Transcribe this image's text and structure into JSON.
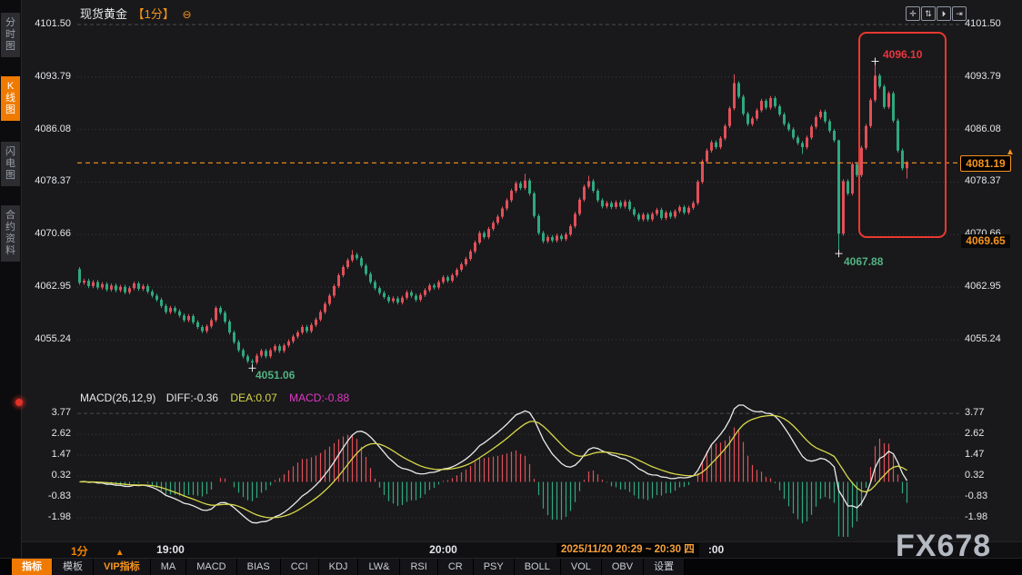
{
  "header": {
    "title": "现货黄金",
    "interval": "【1分】",
    "collapse_icon": "⊖"
  },
  "window_icons": [
    {
      "name": "move-icon",
      "glyph": "✛"
    },
    {
      "name": "scale-axis-icon",
      "glyph": "⇅"
    },
    {
      "name": "auto-scroll-icon",
      "glyph": "⏵"
    },
    {
      "name": "pan-right-icon",
      "glyph": "⇥"
    }
  ],
  "sidebar": {
    "items": [
      {
        "label": "分时图",
        "active": false
      },
      {
        "label": "K线图",
        "active": true
      },
      {
        "label": "闪电图",
        "active": false
      },
      {
        "label": "合约资料",
        "active": false
      }
    ]
  },
  "indicator_readout": {
    "name": "MACD(26,12,9)",
    "diff": "DIFF:-0.36",
    "dea": "DEA:0.07",
    "macd": "MACD:-0.88"
  },
  "price_axis": {
    "current": "4081.19",
    "prev_close": "4069.65"
  },
  "annotations": {
    "high": "4096.10",
    "low": "4067.88",
    "session_low": "4051.06"
  },
  "time_axis": {
    "interval": "1分",
    "arrow": "▲",
    "tooltip": "2025/11/20 20:29 ~ 20:30 四",
    "labels": [
      {
        "index": 20,
        "text": "19:00"
      },
      {
        "index": 80,
        "text": "20:00"
      },
      {
        "index": 140,
        "text": ":00"
      }
    ]
  },
  "toolbar": {
    "items": [
      {
        "label": "指标",
        "style": "active"
      },
      {
        "label": "模板",
        "style": "normal"
      },
      {
        "label": "VIP指标",
        "style": "vip"
      },
      {
        "label": "MA",
        "style": "normal"
      },
      {
        "label": "MACD",
        "style": "normal"
      },
      {
        "label": "BIAS",
        "style": "normal"
      },
      {
        "label": "CCI",
        "style": "normal"
      },
      {
        "label": "KDJ",
        "style": "normal"
      },
      {
        "label": "LW&",
        "style": "normal"
      },
      {
        "label": "RSI",
        "style": "normal"
      },
      {
        "label": "CR",
        "style": "normal"
      },
      {
        "label": "PSY",
        "style": "normal"
      },
      {
        "label": "BOLL",
        "style": "normal"
      },
      {
        "label": "VOL",
        "style": "normal"
      },
      {
        "label": "OBV",
        "style": "normal"
      },
      {
        "label": "设置",
        "style": "normal"
      }
    ]
  },
  "watermark": "FX678",
  "colors": {
    "up": "#e0505a",
    "down": "#2fa87e",
    "accent": "#f7941d",
    "grid": "#3b3b42",
    "grid_major": "#4a4a52",
    "diff_line": "#eaeaea",
    "dea_line": "#d8d84a",
    "annotation_red": "#e8363f",
    "annotation_green": "#52b283",
    "highlight_box": "#e8392f",
    "marker": "#e8e8e8"
  },
  "chart_data": {
    "type": "candlestick",
    "title": "现货黄金 1分",
    "interval_minutes": 1,
    "price_ticks": [
      4101.5,
      4093.79,
      4086.08,
      4078.37,
      4070.66,
      4062.95,
      4055.24
    ],
    "ylim": [
      4048.6,
      4103.2
    ],
    "current_price": 4081.19,
    "prev_close": 4069.65,
    "x_hour_labels": [
      "19:00",
      "20:00",
      "21:00"
    ],
    "first_open": 4065.6,
    "default_wick": 0.3,
    "closes": [
      4063.6,
      4063.9,
      4063.1,
      4063.7,
      4062.9,
      4063.4,
      4062.6,
      4063.2,
      4062.5,
      4063.0,
      4062.2,
      4062.8,
      4063.5,
      4062.7,
      4063.1,
      4062.3,
      4061.7,
      4061.1,
      4060.2,
      4059.3,
      4059.9,
      4059.4,
      4058.8,
      4058.1,
      4058.7,
      4057.8,
      4057.1,
      4056.5,
      4057.2,
      4058.1,
      4059.9,
      4059.2,
      4057.9,
      4056.3,
      4054.9,
      4053.7,
      4052.8,
      4052.1,
      4051.9,
      4052.9,
      4053.6,
      4052.8,
      4053.7,
      4054.3,
      4053.6,
      4054.4,
      4055.0,
      4055.7,
      4056.3,
      4057.1,
      4056.5,
      4057.4,
      4058.2,
      4059.3,
      4060.5,
      4061.7,
      4063.1,
      4064.7,
      4065.9,
      4066.9,
      4067.7,
      4067.2,
      4066.1,
      4064.9,
      4063.7,
      4062.8,
      4062.1,
      4061.5,
      4060.9,
      4061.3,
      4060.7,
      4061.4,
      4062.2,
      4061.7,
      4061.1,
      4061.8,
      4062.5,
      4063.2,
      4062.9,
      4063.7,
      4064.4,
      4063.9,
      4064.7,
      4065.5,
      4066.3,
      4067.1,
      4068.2,
      4069.5,
      4070.9,
      4070.3,
      4071.5,
      4072.4,
      4073.3,
      4074.5,
      4075.7,
      4077.1,
      4078.2,
      4077.5,
      4078.6,
      4076.7,
      4073.4,
      4070.9,
      4069.7,
      4070.3,
      4069.8,
      4070.5,
      4070.0,
      4070.7,
      4071.9,
      4073.7,
      4075.8,
      4077.7,
      4078.5,
      4077.1,
      4075.7,
      4074.8,
      4075.3,
      4074.7,
      4075.4,
      4074.8,
      4075.5,
      4074.4,
      4073.6,
      4072.9,
      4073.6,
      4072.9,
      4073.7,
      4074.3,
      4073.1,
      4073.9,
      4073.3,
      4074.1,
      4074.7,
      4073.9,
      4074.6,
      4075.3,
      4078.4,
      4081.4,
      4083.0,
      4084.2,
      4083.5,
      4084.8,
      4086.6,
      4089.2,
      4092.9,
      4090.9,
      4088.4,
      4086.9,
      4087.7,
      4088.9,
      4090.3,
      4089.3,
      4090.7,
      4089.5,
      4088.3,
      4086.9,
      4086.1,
      4084.9,
      4084.1,
      4083.5,
      4084.9,
      4086.5,
      4087.9,
      4088.7,
      4087.3,
      4085.9,
      4084.5,
      4070.8,
      4078.5,
      4076.7,
      4081.0,
      4079.4,
      4083.4,
      4086.6,
      4090.4,
      4094.0,
      4092.4,
      4089.4,
      4091.4,
      4087.4,
      4083.0,
      4080.4,
      4081.19
    ],
    "wick_overrides": {
      "38": {
        "low": 4051.06
      },
      "60": {
        "high": 4068.4
      },
      "98": {
        "high": 4079.6
      },
      "112": {
        "high": 4079.3
      },
      "144": {
        "high": 4094.2
      },
      "159": {
        "low": 4082.5
      },
      "167": {
        "low": 4067.88,
        "high": 4084.6
      },
      "175": {
        "high": 4096.1
      },
      "182": {
        "low": 4078.9
      }
    },
    "markers": {
      "high": {
        "index": 175,
        "price": 4096.1,
        "label": "4096.10"
      },
      "low": {
        "index": 167,
        "price": 4067.88,
        "label": "4067.88"
      },
      "session_low": {
        "index": 38,
        "price": 4051.06,
        "label": "4051.06"
      }
    },
    "highlight_box": {
      "start_index": 171.5,
      "end_index": 190.5,
      "price_min": 4070.3,
      "price_max": 4100.3
    },
    "macd": {
      "params": [
        26,
        12,
        9
      ],
      "ticks": [
        3.77,
        2.62,
        1.47,
        0.32,
        -0.83,
        -1.98
      ],
      "last_diff": -0.36,
      "last_dea": 0.07,
      "last_hist": -0.88
    }
  }
}
